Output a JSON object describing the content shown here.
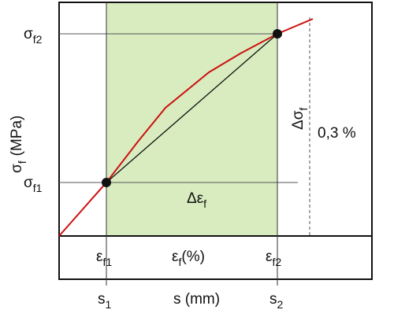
{
  "labels": {
    "sigma_f2": {
      "symbol": "σ",
      "sub": "f2"
    },
    "sigma_f1": {
      "symbol": "σ",
      "sub": "f1"
    },
    "y_axis": {
      "symbol": "σ",
      "sub": "f",
      "unit": "(MPa)"
    },
    "delta_sigma": {
      "symbol": "Δσ",
      "sub": "f"
    },
    "offset": "0,3 %",
    "delta_eps": {
      "symbol": "Δε",
      "sub": "f"
    },
    "eps_f1": {
      "symbol": "ε",
      "sub": "f1"
    },
    "eps_f": {
      "symbol": "ε",
      "sub": "f",
      "unit": "(%)"
    },
    "eps_f2": {
      "symbol": "ε",
      "sub": "f2"
    },
    "s1": {
      "symbol": "s",
      "sub": "1"
    },
    "s_axis": "s (mm)",
    "s2": {
      "symbol": "s",
      "sub": "2"
    }
  }
}
